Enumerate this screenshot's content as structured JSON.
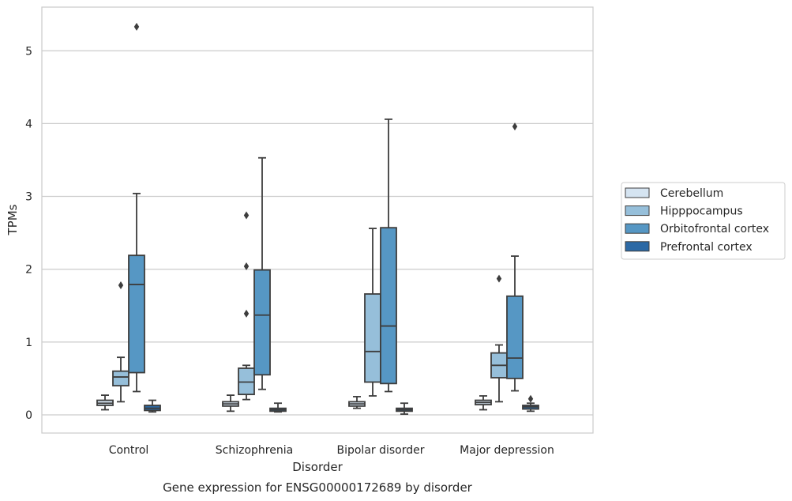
{
  "chart_data": {
    "type": "box",
    "title": "",
    "caption": "Gene expression for ENSG00000172689 by disorder",
    "xlabel": "Disorder",
    "ylabel": "TPMs",
    "ylim": [
      -0.25,
      5.6
    ],
    "yticks": [
      0,
      1,
      2,
      3,
      4,
      5
    ],
    "grid": true,
    "legend_position": "right",
    "categories": [
      "Control",
      "Schizophrenia",
      "Bipolar disorder",
      "Major depression"
    ],
    "series": [
      {
        "name": "Cerebellum",
        "color": "#d5e4f1",
        "boxes": [
          {
            "whislo": 0.07,
            "q1": 0.13,
            "med": 0.16,
            "q3": 0.2,
            "whishi": 0.27,
            "fliers": []
          },
          {
            "whislo": 0.05,
            "q1": 0.12,
            "med": 0.15,
            "q3": 0.18,
            "whishi": 0.27,
            "fliers": []
          },
          {
            "whislo": 0.09,
            "q1": 0.12,
            "med": 0.15,
            "q3": 0.18,
            "whishi": 0.25,
            "fliers": []
          },
          {
            "whislo": 0.07,
            "q1": 0.14,
            "med": 0.17,
            "q3": 0.2,
            "whishi": 0.26,
            "fliers": []
          }
        ]
      },
      {
        "name": "Hipppocampus",
        "color": "#96bfda",
        "boxes": [
          {
            "whislo": 0.18,
            "q1": 0.4,
            "med": 0.52,
            "q3": 0.6,
            "whishi": 0.79,
            "fliers": [
              1.78
            ]
          },
          {
            "whislo": 0.21,
            "q1": 0.28,
            "med": 0.45,
            "q3": 0.64,
            "whishi": 0.68,
            "fliers": [
              1.39,
              2.04,
              2.74
            ]
          },
          {
            "whislo": 0.26,
            "q1": 0.45,
            "med": 0.87,
            "q3": 1.66,
            "whishi": 2.56,
            "fliers": []
          },
          {
            "whislo": 0.18,
            "q1": 0.51,
            "med": 0.68,
            "q3": 0.85,
            "whishi": 0.96,
            "fliers": [
              1.87
            ]
          }
        ]
      },
      {
        "name": "Orbitofrontal cortex",
        "color": "#5697c4",
        "boxes": [
          {
            "whislo": 0.32,
            "q1": 0.58,
            "med": 1.79,
            "q3": 2.19,
            "whishi": 3.04,
            "fliers": [
              5.33
            ]
          },
          {
            "whislo": 0.35,
            "q1": 0.55,
            "med": 1.37,
            "q3": 1.99,
            "whishi": 3.53,
            "fliers": []
          },
          {
            "whislo": 0.32,
            "q1": 0.43,
            "med": 1.22,
            "q3": 2.57,
            "whishi": 4.06,
            "fliers": []
          },
          {
            "whislo": 0.33,
            "q1": 0.5,
            "med": 0.78,
            "q3": 1.63,
            "whishi": 2.18,
            "fliers": [
              3.96
            ]
          }
        ]
      },
      {
        "name": "Prefrontal cortex",
        "color": "#2c69a5",
        "boxes": [
          {
            "whislo": 0.04,
            "q1": 0.06,
            "med": 0.09,
            "q3": 0.13,
            "whishi": 0.2,
            "fliers": []
          },
          {
            "whislo": 0.04,
            "q1": 0.05,
            "med": 0.07,
            "q3": 0.09,
            "whishi": 0.16,
            "fliers": []
          },
          {
            "whislo": 0.01,
            "q1": 0.05,
            "med": 0.07,
            "q3": 0.09,
            "whishi": 0.16,
            "fliers": []
          },
          {
            "whislo": 0.05,
            "q1": 0.08,
            "med": 0.11,
            "q3": 0.13,
            "whishi": 0.16,
            "fliers": [
              0.22
            ]
          }
        ]
      }
    ]
  }
}
